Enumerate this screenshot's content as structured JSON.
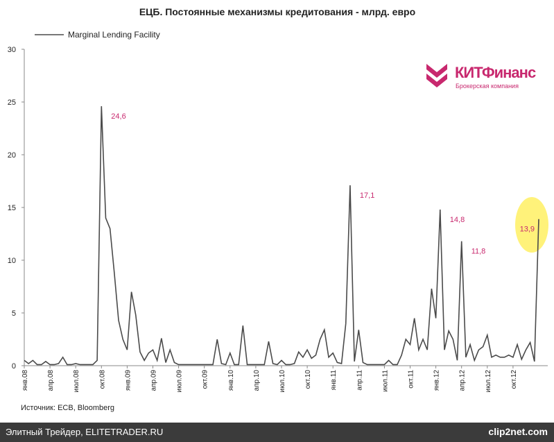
{
  "chart_data": {
    "type": "line",
    "title": "ЕЦБ. Постоянные механизмы кредитования - млрд. евро",
    "categories": [
      "янв.08",
      null,
      null,
      null,
      null,
      null,
      "апр.08",
      null,
      null,
      null,
      null,
      null,
      "июл.08",
      null,
      null,
      null,
      null,
      null,
      "окт.08",
      null,
      null,
      null,
      null,
      null,
      "янв.09",
      null,
      null,
      null,
      null,
      null,
      "апр.09",
      null,
      null,
      null,
      null,
      null,
      "июл.09",
      null,
      null,
      null,
      null,
      null,
      "окт.09",
      null,
      null,
      null,
      null,
      null,
      "янв.10",
      null,
      null,
      null,
      null,
      null,
      "апр.10",
      null,
      null,
      null,
      null,
      null,
      "июл.10",
      null,
      null,
      null,
      null,
      null,
      "окт.10",
      null,
      null,
      null,
      null,
      null,
      "янв.11",
      null,
      null,
      null,
      null,
      null,
      "апр.11",
      null,
      null,
      null,
      null,
      null,
      "июл.11",
      null,
      null,
      null,
      null,
      null,
      "окт.11",
      null,
      null,
      null,
      null,
      null,
      "янв.12",
      null,
      null,
      null,
      null,
      null,
      "апр.12",
      null,
      null,
      null,
      null,
      null,
      "июл.12",
      null,
      null,
      null,
      null,
      null,
      "окт.12",
      null,
      null,
      null,
      null,
      null,
      null
    ],
    "series": [
      {
        "name": "Marginal Lending Facility",
        "color": "#4a4a4a",
        "values": [
          0.5,
          0.2,
          0.5,
          0.1,
          0.1,
          0.4,
          0.1,
          0.1,
          0.2,
          0.8,
          0.1,
          0.1,
          0.2,
          0.1,
          0.1,
          0.1,
          0.1,
          0.5,
          24.6,
          14,
          13,
          8.8,
          4.3,
          2.5,
          1.5,
          7,
          4.8,
          1.3,
          0.5,
          1.2,
          1.5,
          0.5,
          2.6,
          0.3,
          1.5,
          0.3,
          0.1,
          0.1,
          0.1,
          0.1,
          0.1,
          0.1,
          0.1,
          0.1,
          0.1,
          2.5,
          0.2,
          0.1,
          1.2,
          0.1,
          0.1,
          3.8,
          0.1,
          0.1,
          0.1,
          0.1,
          0.1,
          2.3,
          0.2,
          0.1,
          0.5,
          0.1,
          0.1,
          0.2,
          1.3,
          0.8,
          1.5,
          0.7,
          1,
          2.5,
          3.4,
          0.8,
          1.2,
          0.3,
          0.2,
          4,
          17.1,
          0.4,
          3.4,
          0.3,
          0.1,
          0.1,
          0.1,
          0.1,
          0.1,
          0.5,
          0.1,
          0.1,
          1,
          2.5,
          2,
          4.5,
          1.5,
          2.5,
          1.5,
          7.3,
          4.5,
          14.8,
          1.5,
          3.3,
          2.5,
          0.5,
          11.8,
          0.8,
          2,
          0.5,
          1.5,
          1.8,
          2.9,
          0.8,
          1,
          0.8,
          0.8,
          1,
          0.8,
          2,
          0.6,
          1.5,
          2.2,
          0.4,
          13.9
        ],
        "value_labels": [
          null,
          null,
          null,
          null,
          null,
          null,
          null,
          null,
          null,
          null,
          null,
          null,
          null,
          null,
          null,
          null,
          null,
          null,
          "24,6",
          null,
          null,
          null,
          null,
          null,
          null,
          null,
          null,
          null,
          null,
          null,
          null,
          null,
          null,
          null,
          null,
          null,
          null,
          null,
          null,
          null,
          null,
          null,
          null,
          null,
          null,
          null,
          null,
          null,
          null,
          null,
          null,
          null,
          null,
          null,
          null,
          null,
          null,
          null,
          null,
          null,
          null,
          null,
          null,
          null,
          null,
          null,
          null,
          null,
          null,
          null,
          null,
          null,
          null,
          null,
          null,
          null,
          "17,1",
          null,
          null,
          null,
          null,
          null,
          null,
          null,
          null,
          null,
          null,
          null,
          null,
          null,
          null,
          null,
          null,
          null,
          null,
          null,
          null,
          "14,8",
          null,
          null,
          null,
          null,
          "11,8",
          null,
          null,
          null,
          null,
          null,
          null,
          null,
          null,
          null,
          null,
          null,
          null,
          null,
          null,
          null,
          null,
          null,
          "13,9"
        ]
      }
    ],
    "ylim": [
      0,
      30
    ],
    "yticks": [
      0,
      5,
      10,
      15,
      20,
      25,
      30
    ],
    "label_color": "#c8286e"
  },
  "logo": {
    "name": "КИТФинанс",
    "subtitle": "Брокерская компания"
  },
  "source": "Источник: ECB, Bloomberg",
  "footer": {
    "left": "Элитный Трейдер, ELITETRADER.RU",
    "right": "clip2net.com"
  }
}
